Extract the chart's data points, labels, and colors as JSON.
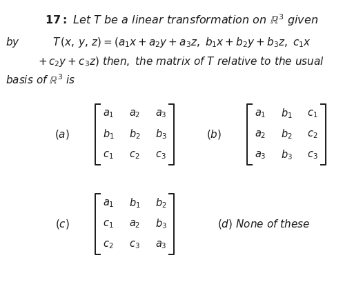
{
  "bg_color": "#ffffff",
  "text_color": "#1a1a1a",
  "fs_title": 11.5,
  "fs_body": 11.0,
  "fs_matrix": 10.5,
  "rows_a": [
    [
      "a_1",
      "a_2",
      "a_3"
    ],
    [
      "b_1",
      "b_2",
      "b_3"
    ],
    [
      "c_1",
      "c_2",
      "c_3"
    ]
  ],
  "rows_b": [
    [
      "a_1",
      "b_1",
      "c_1"
    ],
    [
      "a_2",
      "b_2",
      "c_2"
    ],
    [
      "a_3",
      "b_3",
      "c_3"
    ]
  ],
  "rows_c": [
    [
      "a_1",
      "b_1",
      "b_2"
    ],
    [
      "c_1",
      "a_2",
      "b_3"
    ],
    [
      "c_2",
      "c_3",
      "a_3"
    ]
  ]
}
